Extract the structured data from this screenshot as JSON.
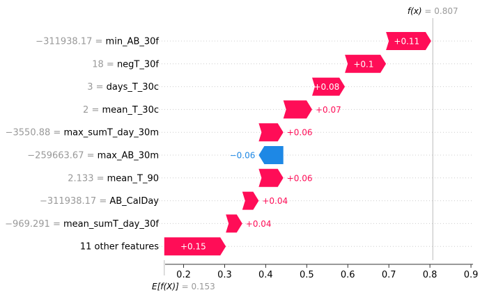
{
  "chart_data": {
    "type": "waterfall",
    "base_value": 0.153,
    "output_value": 0.807,
    "base_label": "E[f(X)]",
    "base_value_text": "0.153",
    "output_label": "f(x)",
    "output_value_text": "0.807",
    "xlim": [
      0.155,
      0.905
    ],
    "xticks": [
      "0.2",
      "0.3",
      "0.4",
      "0.5",
      "0.6",
      "0.7",
      "0.8",
      "0.9"
    ],
    "grid": "dotted row lines",
    "colors": {
      "positive": "#ff0d57",
      "negative": "#1e88e5",
      "feature_value": "#999999",
      "feature_name": "#000000"
    },
    "rows": [
      {
        "feature": "min_AB_30f",
        "value_text": "−311938.17",
        "delta": 0.11,
        "label": "+0.11"
      },
      {
        "feature": "negT_30f",
        "value_text": "18",
        "delta": 0.1,
        "label": "+0.1"
      },
      {
        "feature": "days_T_30c",
        "value_text": "3",
        "delta": 0.08,
        "label": "+0.08"
      },
      {
        "feature": "mean_T_30c",
        "value_text": "2",
        "delta": 0.07,
        "label": "+0.07"
      },
      {
        "feature": "max_sumT_day_30m",
        "value_text": "−3550.88",
        "delta": 0.06,
        "label": "+0.06"
      },
      {
        "feature": "max_AB_30m",
        "value_text": "−259663.67",
        "delta": -0.06,
        "label": "−0.06"
      },
      {
        "feature": "mean_T_90",
        "value_text": "2.133",
        "delta": 0.06,
        "label": "+0.06"
      },
      {
        "feature": "AB_CalDay",
        "value_text": "−311938.17",
        "delta": 0.04,
        "label": "+0.04"
      },
      {
        "feature": "mean_sumT_day_30f",
        "value_text": "−969.291",
        "delta": 0.04,
        "label": "+0.04"
      },
      {
        "feature": "11 other features",
        "value_text": "",
        "delta": 0.15,
        "label": "+0.15"
      }
    ]
  }
}
